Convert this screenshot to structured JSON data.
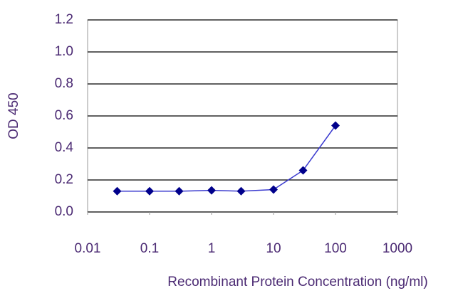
{
  "chart_data": {
    "type": "line",
    "x_label": "Recombinant Protein Concentration  (ng/ml)",
    "y_label": "OD 450",
    "x": [
      0.03,
      0.1,
      0.3,
      1,
      3,
      10,
      30,
      100
    ],
    "series": [
      {
        "color": "#00008b",
        "line_color": "#3a3acf",
        "values": [
          0.13,
          0.13,
          0.13,
          0.135,
          0.13,
          0.14,
          0.26,
          0.54
        ]
      }
    ],
    "xscale": "log",
    "xlim": [
      0.01,
      1000
    ],
    "xticks": [
      0.01,
      0.1,
      1,
      10,
      100,
      1000
    ],
    "ylim": [
      0,
      1.2
    ],
    "yticks": [
      {
        "value": 0,
        "label": "0.0"
      },
      0.2,
      0.4,
      0.6,
      0.8,
      {
        "value": 1,
        "label": "1.0"
      },
      1.2
    ],
    "grid": true,
    "label_color": "#4b2a73"
  }
}
